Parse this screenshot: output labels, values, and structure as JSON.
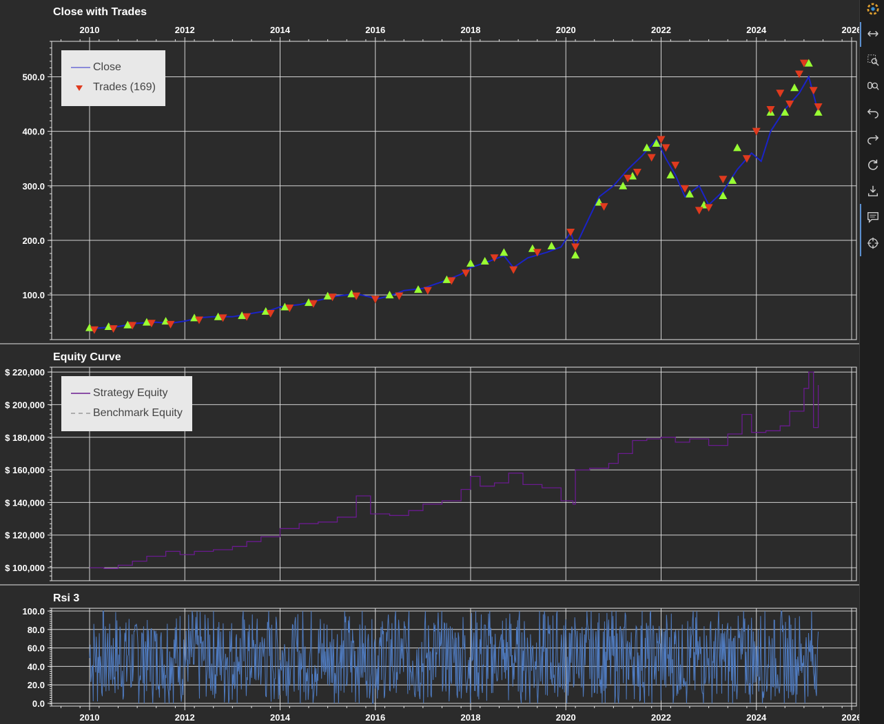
{
  "toolbar": {
    "icons": [
      "logo-icon",
      "pan-icon",
      "box-zoom-icon",
      "wheel-zoom-icon",
      "undo-icon",
      "redo-icon",
      "reset-icon",
      "save-icon",
      "hover-icon",
      "crosshair-icon"
    ]
  },
  "colors": {
    "background": "#2b2b2b",
    "grid": "#e6e6e6",
    "close_line": "#1a23c8",
    "trade_buy": "#99ff33",
    "trade_sell": "#e03a1e",
    "equity": "#6a1b8f",
    "rsi": "#4f7bc0"
  },
  "chart_data": [
    {
      "type": "line",
      "title": "Close with Trades",
      "x_axis_position": "top",
      "x_ticks": [
        "2010",
        "2012",
        "2014",
        "2016",
        "2018",
        "2020",
        "2022",
        "2024",
        "2026"
      ],
      "y_ticks": [
        "100.0",
        "200.0",
        "300.0",
        "400.0",
        "500.0"
      ],
      "ylim": [
        18,
        565
      ],
      "xlim": [
        2009.3,
        2026.2
      ],
      "grid": true,
      "legend_position": "top-left",
      "legend": [
        "Close",
        "Trades (169)"
      ],
      "series": [
        {
          "name": "Close",
          "x": [
            2010.0,
            2010.3,
            2010.6,
            2011.0,
            2011.4,
            2011.7,
            2012.0,
            2012.3,
            2012.6,
            2013.0,
            2013.4,
            2013.8,
            2014.0,
            2014.4,
            2014.8,
            2015.2,
            2015.6,
            2015.9,
            2016.0,
            2016.3,
            2016.6,
            2017.0,
            2017.4,
            2017.8,
            2018.0,
            2018.4,
            2018.7,
            2018.9,
            2019.2,
            2019.6,
            2019.9,
            2020.1,
            2020.2,
            2020.4,
            2020.7,
            2021.0,
            2021.3,
            2021.6,
            2021.9,
            2022.1,
            2022.3,
            2022.5,
            2022.8,
            2023.0,
            2023.3,
            2023.6,
            2023.9,
            2024.1,
            2024.3,
            2024.6,
            2024.9,
            2025.1,
            2025.3
          ],
          "values": [
            38,
            40,
            42,
            48,
            50,
            48,
            52,
            58,
            60,
            60,
            66,
            72,
            78,
            82,
            90,
            98,
            102,
            96,
            92,
            98,
            108,
            112,
            124,
            138,
            150,
            162,
            172,
            150,
            168,
            178,
            188,
            215,
            188,
            225,
            280,
            300,
            330,
            355,
            385,
            350,
            320,
            280,
            300,
            265,
            290,
            330,
            360,
            345,
            400,
            440,
            470,
            500,
            435
          ]
        },
        {
          "name": "Trades (169)",
          "buys": [
            [
              2010.0,
              40
            ],
            [
              2010.4,
              42
            ],
            [
              2010.8,
              45
            ],
            [
              2011.2,
              50
            ],
            [
              2011.6,
              52
            ],
            [
              2012.2,
              58
            ],
            [
              2012.7,
              60
            ],
            [
              2013.2,
              62
            ],
            [
              2013.7,
              70
            ],
            [
              2014.1,
              78
            ],
            [
              2014.6,
              86
            ],
            [
              2015.0,
              98
            ],
            [
              2015.5,
              102
            ],
            [
              2016.3,
              100
            ],
            [
              2016.9,
              110
            ],
            [
              2017.5,
              128
            ],
            [
              2018.0,
              158
            ],
            [
              2018.3,
              162
            ],
            [
              2018.7,
              178
            ],
            [
              2019.3,
              185
            ],
            [
              2019.7,
              190
            ],
            [
              2020.2,
              173
            ],
            [
              2020.7,
              270
            ],
            [
              2021.2,
              300
            ],
            [
              2021.4,
              318
            ],
            [
              2021.7,
              370
            ],
            [
              2021.9,
              378
            ],
            [
              2022.2,
              320
            ],
            [
              2022.6,
              285
            ],
            [
              2022.9,
              265
            ],
            [
              2023.3,
              282
            ],
            [
              2023.5,
              310
            ],
            [
              2023.6,
              370
            ],
            [
              2024.3,
              435
            ],
            [
              2024.6,
              435
            ],
            [
              2024.8,
              480
            ],
            [
              2025.1,
              525
            ],
            [
              2025.3,
              435
            ]
          ],
          "sells": [
            [
              2010.1,
              36
            ],
            [
              2010.5,
              38
            ],
            [
              2010.9,
              44
            ],
            [
              2011.3,
              48
            ],
            [
              2011.7,
              46
            ],
            [
              2012.3,
              54
            ],
            [
              2012.8,
              58
            ],
            [
              2013.3,
              60
            ],
            [
              2013.8,
              66
            ],
            [
              2014.2,
              76
            ],
            [
              2014.7,
              84
            ],
            [
              2015.1,
              96
            ],
            [
              2015.6,
              98
            ],
            [
              2016.0,
              92
            ],
            [
              2016.5,
              98
            ],
            [
              2017.1,
              108
            ],
            [
              2017.6,
              126
            ],
            [
              2017.9,
              140
            ],
            [
              2018.5,
              168
            ],
            [
              2018.9,
              146
            ],
            [
              2019.4,
              178
            ],
            [
              2020.1,
              215
            ],
            [
              2020.2,
              188
            ],
            [
              2020.8,
              262
            ],
            [
              2021.3,
              314
            ],
            [
              2021.5,
              325
            ],
            [
              2021.8,
              352
            ],
            [
              2022.0,
              385
            ],
            [
              2022.1,
              370
            ],
            [
              2022.3,
              338
            ],
            [
              2022.5,
              295
            ],
            [
              2022.8,
              255
            ],
            [
              2023.0,
              260
            ],
            [
              2023.3,
              312
            ],
            [
              2023.8,
              350
            ],
            [
              2024.0,
              400
            ],
            [
              2024.3,
              440
            ],
            [
              2024.5,
              470
            ],
            [
              2024.7,
              450
            ],
            [
              2024.9,
              505
            ],
            [
              2025.0,
              525
            ],
            [
              2025.2,
              475
            ],
            [
              2025.3,
              445
            ]
          ]
        }
      ]
    },
    {
      "type": "line",
      "title": "Equity Curve",
      "y_ticks": [
        "$ 100,000",
        "$ 120,000",
        "$ 140,000",
        "$ 160,000",
        "$ 180,000",
        "$ 200,000",
        "$ 220,000"
      ],
      "ylim": [
        92000,
        223000
      ],
      "xlim": [
        2009.3,
        2026.2
      ],
      "grid": true,
      "legend_position": "top-left",
      "legend": [
        "Strategy Equity",
        "Benchmark Equity"
      ],
      "series": [
        {
          "name": "Strategy Equity",
          "x": [
            2010.0,
            2010.3,
            2010.6,
            2010.9,
            2011.2,
            2011.6,
            2011.9,
            2012.2,
            2012.6,
            2013.0,
            2013.3,
            2013.6,
            2014.0,
            2014.4,
            2014.8,
            2015.2,
            2015.6,
            2015.9,
            2016.3,
            2016.7,
            2017.0,
            2017.4,
            2017.8,
            2018.0,
            2018.2,
            2018.5,
            2018.8,
            2019.1,
            2019.5,
            2019.9,
            2020.15,
            2020.2,
            2020.5,
            2020.9,
            2021.1,
            2021.4,
            2021.7,
            2022.0,
            2022.3,
            2022.6,
            2023.0,
            2023.4,
            2023.7,
            2023.9,
            2024.2,
            2024.5,
            2024.7,
            2025.0,
            2025.1,
            2025.2,
            2025.3
          ],
          "values": [
            100000,
            99500,
            101500,
            104000,
            107000,
            110000,
            108000,
            110000,
            111000,
            113000,
            116000,
            119000,
            124000,
            127000,
            128000,
            131000,
            144000,
            133000,
            132000,
            135000,
            139000,
            141000,
            148000,
            156000,
            150000,
            152000,
            158000,
            151000,
            149000,
            141000,
            139000,
            160000,
            161000,
            164000,
            170000,
            178000,
            179000,
            180000,
            177000,
            179000,
            175000,
            182000,
            194000,
            183000,
            184000,
            187000,
            196000,
            210000,
            220000,
            186000,
            212000
          ]
        },
        {
          "name": "Benchmark Equity",
          "x": [],
          "values": []
        }
      ]
    },
    {
      "type": "line",
      "title": "Rsi 3",
      "x_ticks": [
        "2010",
        "2012",
        "2014",
        "2016",
        "2018",
        "2020",
        "2022",
        "2024",
        "2026"
      ],
      "y_ticks": [
        "0.0",
        "20.0",
        "40.0",
        "60.0",
        "80.0",
        "100.0"
      ],
      "ylim": [
        -3,
        103
      ],
      "xlim": [
        2009.3,
        2026.2
      ],
      "grid": true,
      "series": [
        {
          "name": "Rsi 3",
          "x_start": 2010.0,
          "x_end": 2025.3,
          "range": [
            0,
            100
          ]
        }
      ]
    }
  ]
}
